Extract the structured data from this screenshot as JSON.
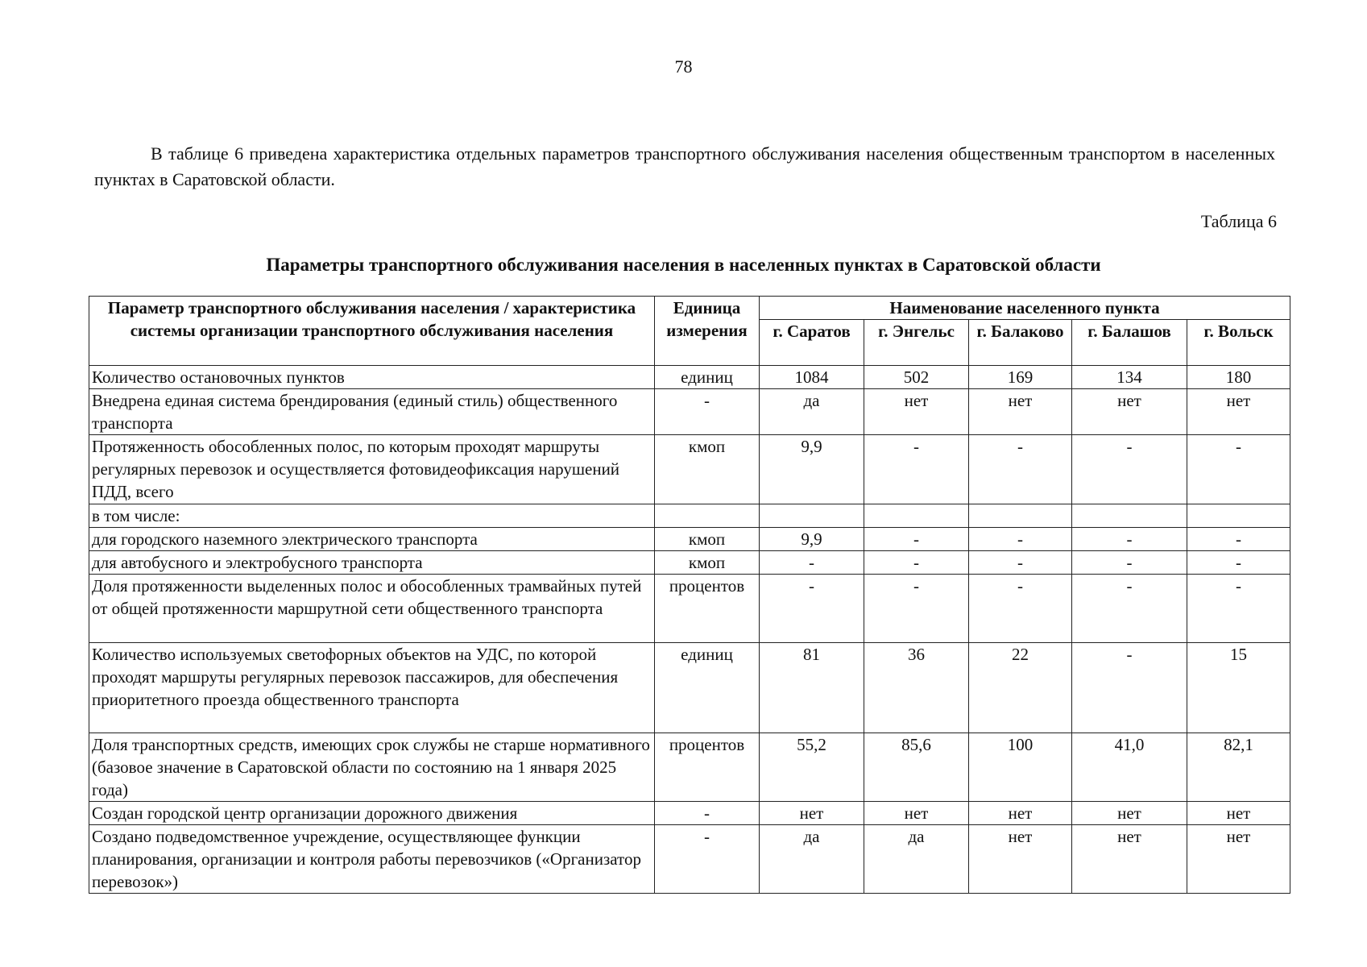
{
  "page_number": "78",
  "intro": "В таблице 6 приведена характеристика отдельных параметров транспортного обслуживания населения общественным транспортом в населенных пунктах в Саратовской области.",
  "table_label": "Таблица 6",
  "table_title": "Параметры транспортного обслуживания населения в населенных пунктах в Саратовской области",
  "table": {
    "header_param": "Параметр транспортного обслуживания населения / характеристика системы организации транспортного обслуживания населения",
    "header_unit": "Единица измерения",
    "header_group": "Наименование населенного пункта",
    "cities": [
      "г. Саратов",
      "г. Энгельс",
      "г. Балаково",
      "г. Балашов",
      "г. Вольск"
    ],
    "rows": [
      {
        "param": "Количество остановочных пунктов",
        "unit": "единиц",
        "values": [
          "1084",
          "502",
          "169",
          "134",
          "180"
        ]
      },
      {
        "param": "Внедрена единая система брендирования (единый стиль) общественного транспорта",
        "unit": "-",
        "values": [
          "да",
          "нет",
          "нет",
          "нет",
          "нет"
        ]
      },
      {
        "param": "Протяженность обособленных полос, по которым проходят маршруты регулярных перевозок и осуществляется фотовидеофиксация нарушений ПДД, всего",
        "unit": "кмоп",
        "values": [
          "9,9",
          "-",
          "-",
          "-",
          "-"
        ]
      },
      {
        "param": "в том числе:",
        "unit": "",
        "values": [
          "",
          "",
          "",
          "",
          ""
        ]
      },
      {
        "param": "для городского наземного электрического транспорта",
        "unit": "кмоп",
        "values": [
          "9,9",
          "-",
          "-",
          "-",
          "-"
        ]
      },
      {
        "param": "для автобусного и электробусного транспорта",
        "unit": "кмоп",
        "values": [
          "-",
          "-",
          "-",
          "-",
          "-"
        ]
      },
      {
        "param": "Доля протяженности выделенных полос и обособленных трамвайных путей от общей протяженности маршрутной сети общественного транспорта",
        "unit": "процентов",
        "values": [
          "-",
          "-",
          "-",
          "-",
          "-"
        ]
      },
      {
        "param": "Количество используемых светофорных объектов на УДС, по которой проходят маршруты регулярных перевозок пассажиров, для обеспечения приоритетного проезда общественного транспорта",
        "unit": "единиц",
        "values": [
          "81",
          "36",
          "22",
          "-",
          "15"
        ]
      },
      {
        "param": "Доля транспортных средств, имеющих срок службы не старше нормативного (базовое значение в Саратовской области по состоянию на 1 января 2025 года)",
        "unit": "процентов",
        "values": [
          "55,2",
          "85,6",
          "100",
          "41,0",
          "82,1"
        ]
      },
      {
        "param": "Создан городской центр организации дорожного движения",
        "unit": "-",
        "values": [
          "нет",
          "нет",
          "нет",
          "нет",
          "нет"
        ]
      },
      {
        "param": "Создано подведомственное учреждение, осуществляющее функции планирования, организации и контроля работы перевозчиков («Организатор перевозок»)",
        "unit": "-",
        "values": [
          "да",
          "да",
          "нет",
          "нет",
          "нет"
        ]
      }
    ]
  }
}
